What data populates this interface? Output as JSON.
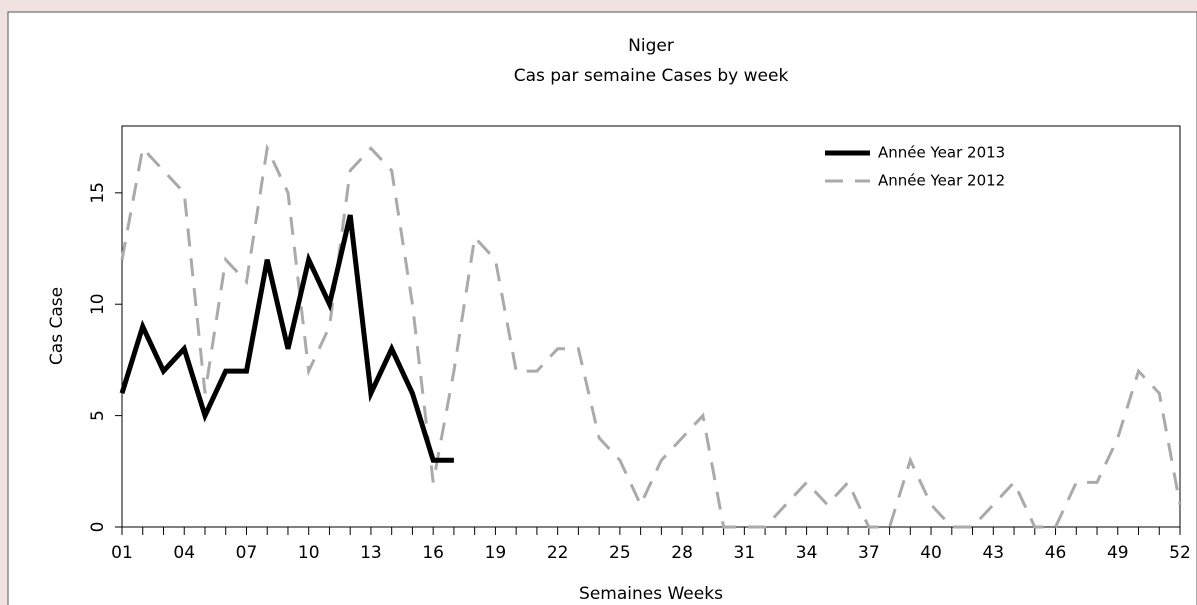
{
  "chart_data": {
    "type": "line",
    "title": "Niger",
    "subtitle": "Cas par semaine Cases by week",
    "x_label": "Semaines Weeks",
    "y_label": "Cas Case",
    "x": [
      1,
      2,
      3,
      4,
      5,
      6,
      7,
      8,
      9,
      10,
      11,
      12,
      13,
      14,
      15,
      16,
      17,
      18,
      19,
      20,
      21,
      22,
      23,
      24,
      25,
      26,
      27,
      28,
      29,
      30,
      31,
      32,
      33,
      34,
      35,
      36,
      37,
      38,
      39,
      40,
      41,
      42,
      43,
      44,
      45,
      46,
      47,
      48,
      49,
      50,
      51,
      52
    ],
    "series": [
      {
        "name": "Année Year 2013",
        "color": "#000000",
        "dashed": false,
        "values": [
          6,
          9,
          7,
          8,
          5,
          7,
          7,
          12,
          8,
          12,
          10,
          14,
          6,
          8,
          6,
          3,
          3,
          null,
          null,
          null,
          null,
          null,
          null,
          null,
          null,
          null,
          null,
          null,
          null,
          null,
          null,
          null,
          null,
          null,
          null,
          null,
          null,
          null,
          null,
          null,
          null,
          null,
          null,
          null,
          null,
          null,
          null,
          null,
          null,
          null,
          null,
          null
        ]
      },
      {
        "name": "Année Year 2012",
        "color": "#aaaaaa",
        "dashed": true,
        "values": [
          12,
          17,
          16,
          15,
          6,
          12,
          11,
          17,
          15,
          7,
          9,
          16,
          17,
          16,
          10,
          2,
          7,
          13,
          12,
          7,
          7,
          8,
          8,
          4,
          3,
          1,
          3,
          4,
          5,
          0,
          0,
          0,
          1,
          2,
          1,
          2,
          0,
          0,
          3,
          1,
          0,
          0,
          1,
          2,
          0,
          0,
          2,
          2,
          4,
          7,
          6,
          1
        ]
      }
    ],
    "xlim": [
      1,
      52
    ],
    "ylim": [
      0,
      18
    ],
    "xticks": [
      {
        "value": 1,
        "label": "01"
      },
      {
        "value": 4,
        "label": "04"
      },
      {
        "value": 7,
        "label": "07"
      },
      10,
      13,
      16,
      19,
      22,
      25,
      28,
      31,
      34,
      37,
      40,
      43,
      46,
      49,
      52
    ],
    "xticks_minor": [
      2,
      3,
      5,
      6,
      8,
      9,
      11,
      12,
      14,
      15,
      17,
      18,
      20,
      21,
      23,
      24,
      26,
      27,
      29,
      30,
      32,
      33,
      35,
      36,
      38,
      39,
      41,
      42,
      44,
      45,
      47,
      48,
      50,
      51
    ],
    "yticks": [
      0,
      5,
      10,
      15
    ],
    "legend": "top-right"
  }
}
